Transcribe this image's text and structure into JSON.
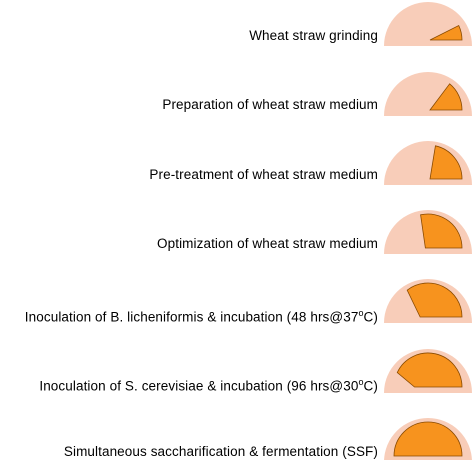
{
  "colors": {
    "dome": "#f8cdb9",
    "fill": "#f7931e",
    "fill_stroke": "#8a4a00",
    "text": "#000000"
  },
  "steps": [
    {
      "label": "Wheat straw grinding",
      "progress": 0.14
    },
    {
      "label": "Preparation of wheat straw medium",
      "progress": 0.28
    },
    {
      "label": "Pre-treatment of wheat straw medium",
      "progress": 0.43
    },
    {
      "label": "Optimization of wheat straw medium",
      "progress": 0.57
    },
    {
      "label_parts": [
        "Inoculation of B. licheniformis & incubation (48 hrs@37",
        "o",
        "C)"
      ],
      "progress": 0.71
    },
    {
      "label_parts": [
        "Inoculation of S. cerevisiae & incubation (96 hrs@30",
        "o",
        "C)"
      ],
      "progress": 0.86
    },
    {
      "label": "Simultaneous saccharification  & fermentation (SSF)",
      "progress": 1.0
    }
  ]
}
